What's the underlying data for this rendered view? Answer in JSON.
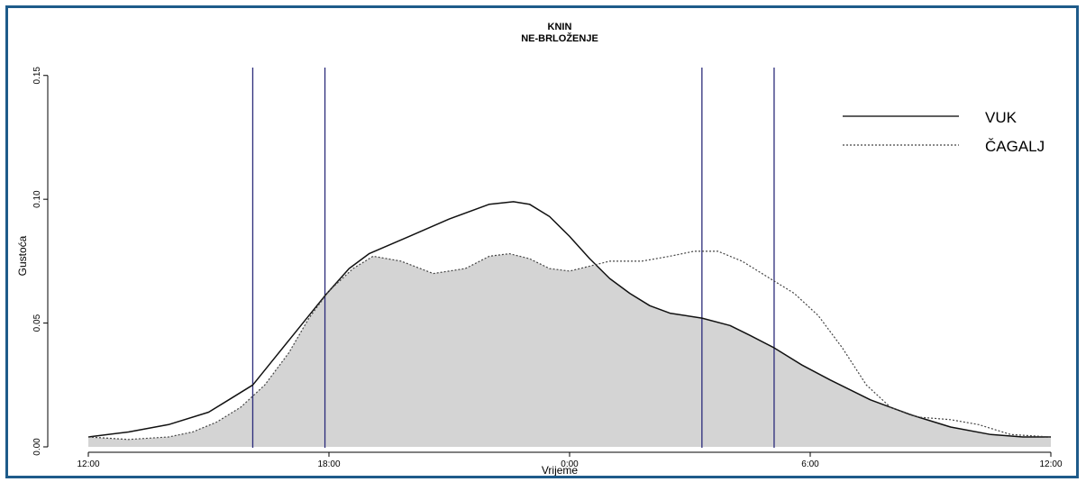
{
  "chart_data": {
    "type": "area",
    "title": "KNIN",
    "subtitle": "NE-BRLOŽENJE",
    "xlabel": "Vrijeme",
    "ylabel": "Gustoća",
    "x_ticks": [
      "12:00",
      "18:00",
      "0:00",
      "6:00",
      "12:00"
    ],
    "y_ticks": [
      "0.00",
      "0.05",
      "0.10",
      "0.15"
    ],
    "xlim": [
      12,
      36
    ],
    "ylim": [
      0,
      0.155
    ],
    "grid": false,
    "legend_position": "top-right",
    "vertical_lines": [
      16.1,
      17.9,
      27.3,
      29.1
    ],
    "series": [
      {
        "name": "VUK",
        "style": "solid",
        "x": [
          12.0,
          13.0,
          14.0,
          15.0,
          15.5,
          16.1,
          16.6,
          17.2,
          17.9,
          18.5,
          19.0,
          20.0,
          21.0,
          22.0,
          22.6,
          23.0,
          23.5,
          24.0,
          24.5,
          25.0,
          25.5,
          26.0,
          26.5,
          27.3,
          28.0,
          28.5,
          29.1,
          29.8,
          30.5,
          31.5,
          32.5,
          33.5,
          34.5,
          35.3,
          36.0
        ],
        "values": [
          0.004,
          0.006,
          0.009,
          0.014,
          0.019,
          0.025,
          0.035,
          0.047,
          0.061,
          0.072,
          0.078,
          0.085,
          0.092,
          0.098,
          0.099,
          0.098,
          0.093,
          0.085,
          0.076,
          0.068,
          0.062,
          0.057,
          0.054,
          0.052,
          0.049,
          0.045,
          0.04,
          0.033,
          0.027,
          0.019,
          0.013,
          0.008,
          0.005,
          0.004,
          0.004
        ]
      },
      {
        "name": "ČAGALJ",
        "style": "dotted",
        "x": [
          12.0,
          13.0,
          14.0,
          14.6,
          15.2,
          15.8,
          16.4,
          17.0,
          17.5,
          18.0,
          18.6,
          19.1,
          19.8,
          20.6,
          21.4,
          22.0,
          22.5,
          23.0,
          23.5,
          24.0,
          24.5,
          25.0,
          25.8,
          26.5,
          27.1,
          27.7,
          28.3,
          28.9,
          29.6,
          30.2,
          30.8,
          31.4,
          32.0,
          32.7,
          33.5,
          34.2,
          35.0,
          36.0
        ],
        "values": [
          0.004,
          0.003,
          0.004,
          0.006,
          0.01,
          0.016,
          0.025,
          0.038,
          0.052,
          0.063,
          0.072,
          0.077,
          0.075,
          0.07,
          0.072,
          0.077,
          0.078,
          0.076,
          0.072,
          0.071,
          0.073,
          0.075,
          0.075,
          0.077,
          0.079,
          0.079,
          0.075,
          0.069,
          0.062,
          0.053,
          0.04,
          0.025,
          0.016,
          0.012,
          0.011,
          0.009,
          0.005,
          0.004
        ]
      }
    ]
  }
}
